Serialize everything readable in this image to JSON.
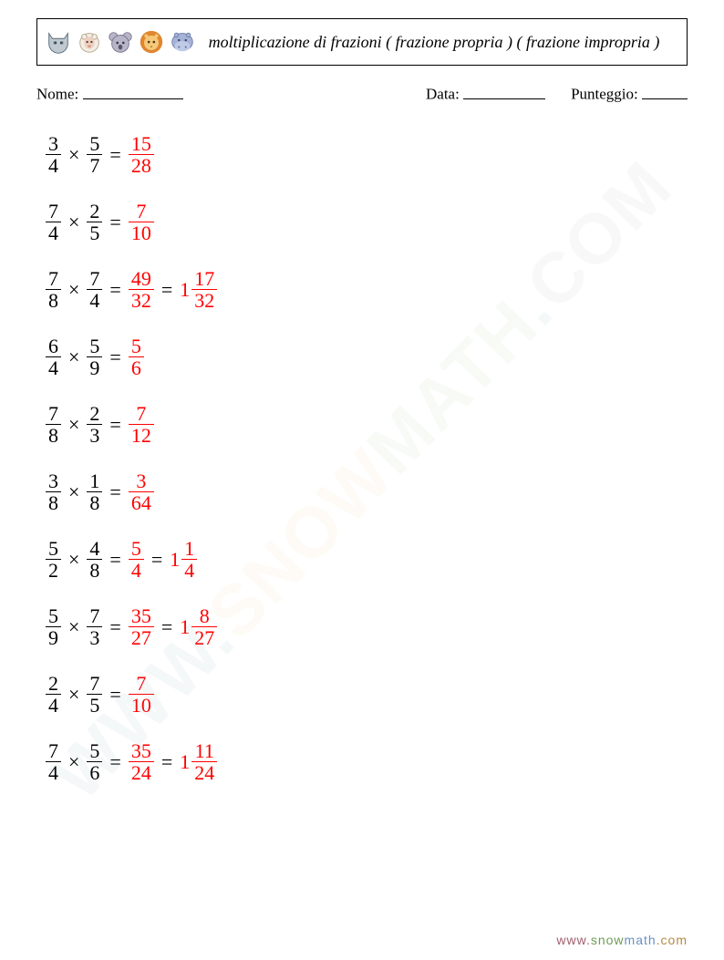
{
  "header": {
    "title": "moltiplicazione di frazioni ( frazione propria ) ( frazione impropria )",
    "icons": [
      "cat-icon",
      "sheep-icon",
      "koala-icon",
      "lion-icon",
      "hippo-icon"
    ]
  },
  "info": {
    "name_label": "Nome:",
    "date_label": "Data:",
    "score_label": "Punteggio:"
  },
  "style": {
    "answer_color": "#ff0000",
    "text_color": "#000000",
    "background_color": "#ffffff",
    "title_fontsize": 18,
    "problem_fontsize": 22
  },
  "problems": [
    {
      "a": {
        "n": 3,
        "d": 4
      },
      "b": {
        "n": 5,
        "d": 7
      },
      "ans": [
        {
          "n": 15,
          "d": 28
        }
      ]
    },
    {
      "a": {
        "n": 7,
        "d": 4
      },
      "b": {
        "n": 2,
        "d": 5
      },
      "ans": [
        {
          "n": 7,
          "d": 10
        }
      ]
    },
    {
      "a": {
        "n": 7,
        "d": 8
      },
      "b": {
        "n": 7,
        "d": 4
      },
      "ans": [
        {
          "n": 49,
          "d": 32
        },
        {
          "w": 1,
          "n": 17,
          "d": 32
        }
      ]
    },
    {
      "a": {
        "n": 6,
        "d": 4
      },
      "b": {
        "n": 5,
        "d": 9
      },
      "ans": [
        {
          "n": 5,
          "d": 6
        }
      ]
    },
    {
      "a": {
        "n": 7,
        "d": 8
      },
      "b": {
        "n": 2,
        "d": 3
      },
      "ans": [
        {
          "n": 7,
          "d": 12
        }
      ]
    },
    {
      "a": {
        "n": 3,
        "d": 8
      },
      "b": {
        "n": 1,
        "d": 8
      },
      "ans": [
        {
          "n": 3,
          "d": 64
        }
      ]
    },
    {
      "a": {
        "n": 5,
        "d": 2
      },
      "b": {
        "n": 4,
        "d": 8
      },
      "ans": [
        {
          "n": 5,
          "d": 4
        },
        {
          "w": 1,
          "n": 1,
          "d": 4
        }
      ]
    },
    {
      "a": {
        "n": 5,
        "d": 9
      },
      "b": {
        "n": 7,
        "d": 3
      },
      "ans": [
        {
          "n": 35,
          "d": 27
        },
        {
          "w": 1,
          "n": 8,
          "d": 27
        }
      ]
    },
    {
      "a": {
        "n": 2,
        "d": 4
      },
      "b": {
        "n": 7,
        "d": 5
      },
      "ans": [
        {
          "n": 7,
          "d": 10
        }
      ]
    },
    {
      "a": {
        "n": 7,
        "d": 4
      },
      "b": {
        "n": 5,
        "d": 6
      },
      "ans": [
        {
          "n": 35,
          "d": 24
        },
        {
          "w": 1,
          "n": 11,
          "d": 24
        }
      ]
    }
  ],
  "operator_symbol": "×",
  "equals_symbol": "=",
  "watermark": {
    "segments": [
      "WWW.",
      "SNOW",
      "MATH",
      ".",
      "COM"
    ]
  },
  "footer": {
    "segments": [
      "www.",
      "snow",
      "math",
      ".com"
    ]
  }
}
